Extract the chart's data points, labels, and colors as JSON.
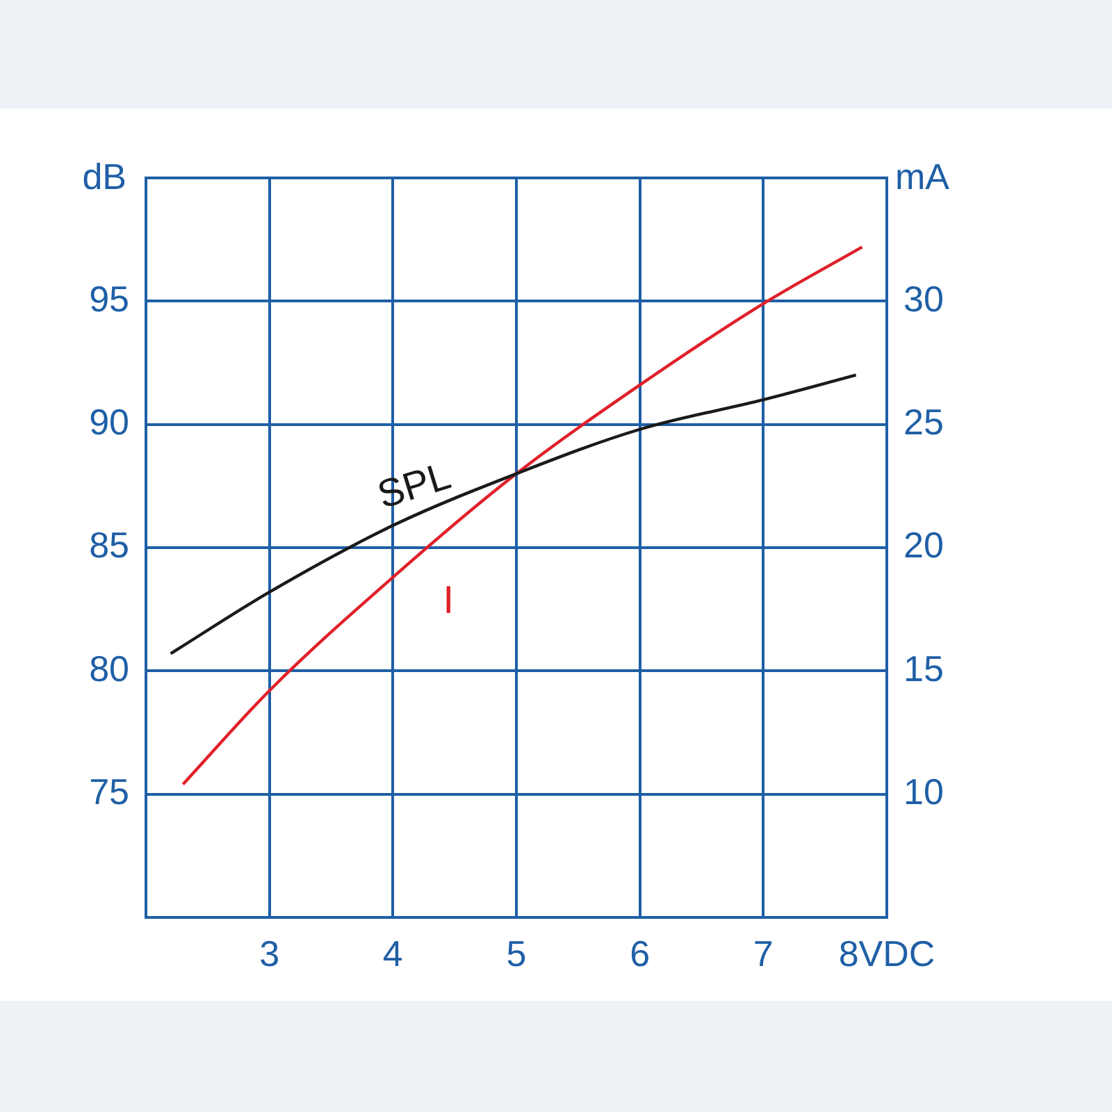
{
  "chart_data": {
    "type": "line",
    "ylabel": "dB",
    "y2label": "mA",
    "xlim": [
      2,
      8
    ],
    "xticks": [
      {
        "value": 2,
        "label": null
      },
      3,
      4,
      5,
      6,
      7,
      {
        "value": 8,
        "label": "8VDC"
      }
    ],
    "ylim": [
      70,
      100
    ],
    "yticks": [
      {
        "value": 70,
        "label": null
      },
      75,
      80,
      85,
      90,
      95,
      {
        "value": 100,
        "label": null
      }
    ],
    "y2lim": [
      5,
      35
    ],
    "y2ticks": [
      {
        "value": 5,
        "label": null
      },
      10,
      15,
      20,
      25,
      30,
      {
        "value": 35,
        "label": null
      }
    ],
    "grid": true,
    "legend": false,
    "marker": "none",
    "line_style": "solid",
    "series": [
      {
        "name": "SPL",
        "color": "#1a1a1a",
        "x": [
          2.2,
          3,
          4,
          5,
          6,
          7,
          7.75
        ],
        "values": [
          80.7,
          83.2,
          85.9,
          88.0,
          89.8,
          91.0,
          92.0
        ]
      },
      {
        "name": "I",
        "color": "#e0202a",
        "axis": "y2",
        "x": [
          2.3,
          3,
          4,
          5,
          6,
          7,
          7.8
        ],
        "values": [
          10.4,
          14.2,
          18.8,
          23.0,
          26.6,
          29.9,
          32.2
        ]
      }
    ]
  }
}
